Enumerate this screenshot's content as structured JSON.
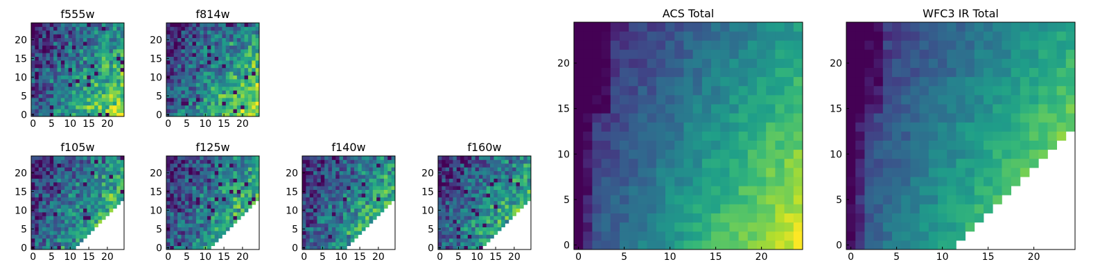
{
  "chart_data": [
    {
      "type": "heatmap",
      "title": "f555w",
      "xlabel": "",
      "ylabel": "",
      "x_ticks": [
        "0",
        "5",
        "10",
        "15",
        "20"
      ],
      "y_ticks": [
        "0",
        "5",
        "10",
        "15",
        "20"
      ],
      "xlim": [
        0,
        24
      ],
      "ylim": [
        0,
        24
      ],
      "grid_size": 25,
      "colormap": "viridis",
      "masked_lower_right": false,
      "grid": false
    },
    {
      "type": "heatmap",
      "title": "f814w",
      "xlabel": "",
      "ylabel": "",
      "x_ticks": [
        "0",
        "5",
        "10",
        "15",
        "20"
      ],
      "y_ticks": [
        "0",
        "5",
        "10",
        "15",
        "20"
      ],
      "xlim": [
        0,
        24
      ],
      "ylim": [
        0,
        24
      ],
      "grid_size": 25,
      "colormap": "viridis",
      "masked_lower_right": false,
      "grid": false
    },
    {
      "type": "heatmap",
      "title": "f105w",
      "xlabel": "",
      "ylabel": "",
      "x_ticks": [
        "0",
        "5",
        "10",
        "15",
        "20"
      ],
      "y_ticks": [
        "0",
        "5",
        "10",
        "15",
        "20"
      ],
      "xlim": [
        0,
        24
      ],
      "ylim": [
        0,
        24
      ],
      "grid_size": 25,
      "colormap": "viridis",
      "masked_lower_right": true,
      "grid": false
    },
    {
      "type": "heatmap",
      "title": "f125w",
      "xlabel": "",
      "ylabel": "",
      "x_ticks": [
        "0",
        "5",
        "10",
        "15",
        "20"
      ],
      "y_ticks": [
        "0",
        "5",
        "10",
        "15",
        "20"
      ],
      "xlim": [
        0,
        24
      ],
      "ylim": [
        0,
        24
      ],
      "grid_size": 25,
      "colormap": "viridis",
      "masked_lower_right": true,
      "grid": false
    },
    {
      "type": "heatmap",
      "title": "f140w",
      "xlabel": "",
      "ylabel": "",
      "x_ticks": [
        "0",
        "5",
        "10",
        "15",
        "20"
      ],
      "y_ticks": [
        "0",
        "5",
        "10",
        "15",
        "20"
      ],
      "xlim": [
        0,
        24
      ],
      "ylim": [
        0,
        24
      ],
      "grid_size": 25,
      "colormap": "viridis",
      "masked_lower_right": true,
      "grid": false
    },
    {
      "type": "heatmap",
      "title": "f160w",
      "xlabel": "",
      "ylabel": "",
      "x_ticks": [
        "0",
        "5",
        "10",
        "15",
        "20"
      ],
      "y_ticks": [
        "0",
        "5",
        "10",
        "15",
        "20"
      ],
      "xlim": [
        0,
        24
      ],
      "ylim": [
        0,
        24
      ],
      "grid_size": 25,
      "colormap": "viridis",
      "masked_lower_right": true,
      "grid": false
    },
    {
      "type": "heatmap",
      "title": "ACS Total",
      "xlabel": "",
      "ylabel": "",
      "x_ticks": [
        "0",
        "5",
        "10",
        "15",
        "20"
      ],
      "y_ticks": [
        "0",
        "5",
        "10",
        "15",
        "20"
      ],
      "xlim": [
        0,
        24
      ],
      "ylim": [
        0,
        24
      ],
      "grid_size": 25,
      "colormap": "viridis",
      "masked_lower_right": false,
      "grid": false
    },
    {
      "type": "heatmap",
      "title": "WFC3 IR Total",
      "xlabel": "",
      "ylabel": "",
      "x_ticks": [
        "0",
        "5",
        "10",
        "15",
        "20"
      ],
      "y_ticks": [
        "0",
        "5",
        "10",
        "15",
        "20"
      ],
      "xlim": [
        0,
        24
      ],
      "ylim": [
        0,
        24
      ],
      "grid_size": 25,
      "colormap": "viridis",
      "masked_lower_right": true,
      "grid": false
    }
  ]
}
